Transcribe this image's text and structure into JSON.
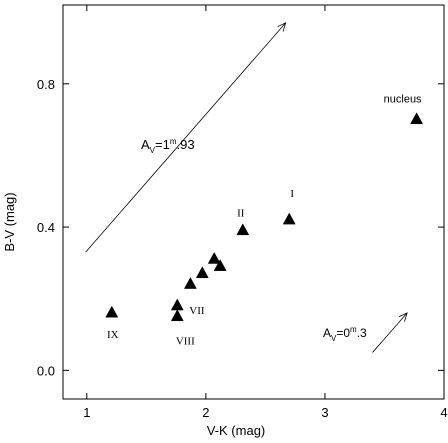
{
  "chart_data": {
    "type": "scatter",
    "title": "",
    "xlabel": "V-K (mag)",
    "ylabel": "B-V (mag)",
    "xlim": [
      0.8,
      4.0
    ],
    "ylim": [
      -0.08,
      1.02
    ],
    "xticks": [
      1,
      2,
      3,
      4
    ],
    "yticks": [
      0.0,
      0.4,
      0.8
    ],
    "xtick_labels": [
      "1",
      "2",
      "3",
      "4"
    ],
    "ytick_labels": [
      "0.0",
      "0.4",
      "0.8"
    ],
    "marker": "filled-triangle",
    "grid": false,
    "points": [
      {
        "x": 3.77,
        "y": 0.7,
        "label": "nucleus"
      },
      {
        "x": 2.7,
        "y": 0.42,
        "label": "I"
      },
      {
        "x": 2.31,
        "y": 0.39,
        "label": "II"
      },
      {
        "x": 2.07,
        "y": 0.31,
        "label": ""
      },
      {
        "x": 2.12,
        "y": 0.29,
        "label": ""
      },
      {
        "x": 1.97,
        "y": 0.27,
        "label": ""
      },
      {
        "x": 1.87,
        "y": 0.24,
        "label": ""
      },
      {
        "x": 1.76,
        "y": 0.18,
        "label": "VII"
      },
      {
        "x": 1.76,
        "y": 0.15,
        "label": "VIII"
      },
      {
        "x": 1.21,
        "y": 0.16,
        "label": "IX"
      }
    ],
    "vectors": [
      {
        "from": [
          0.99,
          0.33
        ],
        "to": [
          2.67,
          0.97
        ],
        "label_main": "A",
        "label_sub": "V",
        "label_mid": "=1",
        "label_sup": "m",
        "label_end": ".93"
      },
      {
        "from": [
          3.4,
          0.05
        ],
        "to": [
          3.69,
          0.16
        ],
        "label_main": "A",
        "label_sub": "V",
        "label_mid": "=0",
        "label_sup": "m",
        "label_end": ".3"
      }
    ]
  }
}
